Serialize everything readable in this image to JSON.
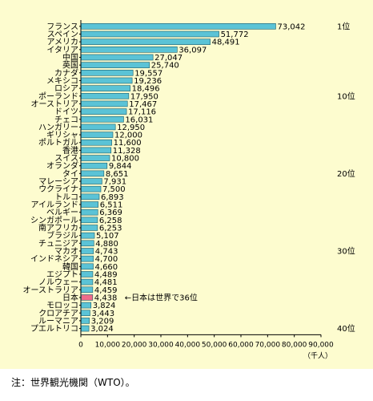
{
  "chart_data": {
    "type": "bar",
    "orientation": "horizontal",
    "categories": [
      "フランス",
      "スペイン",
      "アメリカ",
      "イタリア",
      "中国",
      "英国",
      "カナダ",
      "メキシコ",
      "ロシア",
      "ポーランド",
      "オーストリア",
      "ドイツ",
      "チェコ",
      "ハンガリー",
      "ギリシャ",
      "ポルトガル",
      "香港",
      "スイス",
      "オランダ",
      "タイ",
      "マレーシア",
      "ウクライナ",
      "トルコ",
      "アイルランド",
      "ベルギー",
      "シンガポール",
      "南アフリカ",
      "ブラジル",
      "チュニジア",
      "マカオ",
      "インドネシア",
      "韓国",
      "エジプト",
      "ノルウェー",
      "オーストラリア",
      "日本",
      "モロッコ",
      "クロアチア",
      "ルーマニア",
      "プエルトリコ"
    ],
    "values": [
      73042,
      51772,
      48491,
      36097,
      27047,
      25740,
      19557,
      19236,
      18496,
      17950,
      17467,
      17116,
      16031,
      12950,
      12000,
      11600,
      11328,
      10800,
      9844,
      8651,
      7931,
      7500,
      6893,
      6511,
      6369,
      6258,
      6253,
      5107,
      4880,
      4743,
      4700,
      4660,
      4489,
      4481,
      4459,
      4438,
      3824,
      3443,
      3209,
      3024
    ],
    "value_labels": [
      "73,042",
      "51,772",
      "48,491",
      "36,097",
      "27,047",
      "25,740",
      "19,557",
      "19,236",
      "18,496",
      "17,950",
      "17,467",
      "17,116",
      "16,031",
      "12,950",
      "12,000",
      "11,600",
      "11,328",
      "10,800",
      "9,844",
      "8,651",
      "7,931",
      "7,500",
      "6,893",
      "6,511",
      "6,369",
      "6,258",
      "6,253",
      "5,107",
      "4,880",
      "4,743",
      "4,700",
      "4,660",
      "4,489",
      "4,481",
      "4,459",
      "4,438",
      "3,824",
      "3,443",
      "3,209",
      "3,024"
    ],
    "highlight_index": 35,
    "highlight_annotation": "←日本は世界で36位",
    "rank_markers": [
      {
        "index": 0,
        "label": "1位"
      },
      {
        "index": 9,
        "label": "10位"
      },
      {
        "index": 19,
        "label": "20位"
      },
      {
        "index": 29,
        "label": "30位"
      },
      {
        "index": 39,
        "label": "40位"
      }
    ],
    "x_ticks": [
      "0",
      "10,000",
      "20,000",
      "30,000",
      "40,000",
      "50,000",
      "60,000",
      "70,000",
      "80,000",
      "90,000"
    ],
    "xlim": [
      0,
      90000
    ],
    "unit": "（千人）",
    "grid": false
  },
  "colors": {
    "background": "#fdfccf",
    "bar": "#5bc3d6",
    "highlight_bar": "#f06b8a",
    "bar_stroke": "#1c5d6b"
  },
  "footnote": "注：世界観光機関（WTO）。"
}
